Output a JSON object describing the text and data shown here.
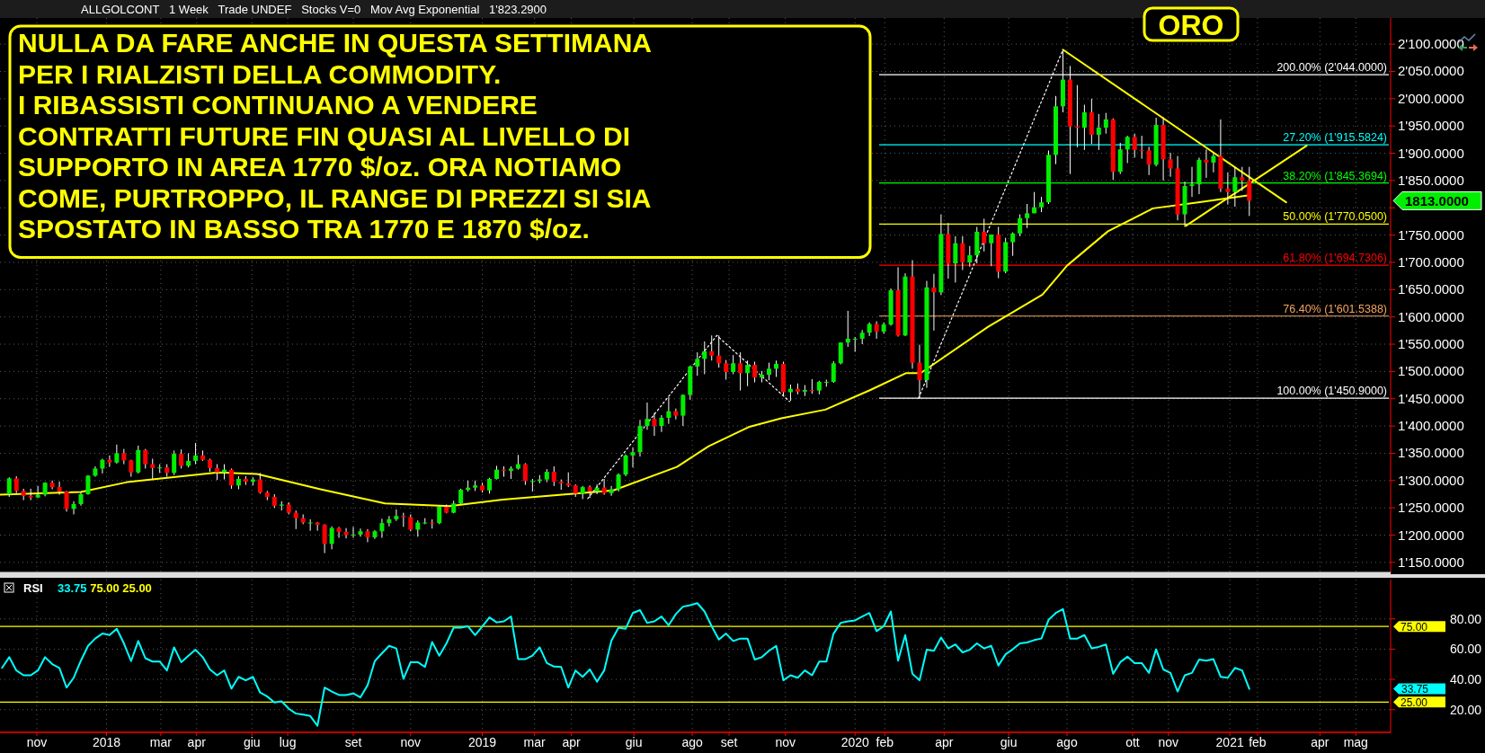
{
  "chart_data": [
    {
      "type": "candlestick",
      "title": "ORO",
      "subtitle": "ALLGOLCONT   1 Week   Trade UNDEF   Stocks V=0   Mov Avg Exponential   1'823.2900",
      "annotations": [
        "NULLA DA FARE ANCHE IN QUESTA SETTIMANA\nPER I RIALZISTI DELLA COMMODITY.\nI RIBASSISTI CONTINUANO A VENDERE\nCONTRATTI FUTURE FIN QUASI AL LIVELLO DI\nSUPPORTO IN AREA 1770 $/oz. ORA NOTIAMO\nCOME, PURTROPPO, IL RANGE DI PREZZI SI SIA\nSPOSTATO IN BASSO TRA 1770 E 1870 $/oz.",
        "1813.0000"
      ],
      "x": [
        "2017-10-13",
        "2017-10-20",
        "2017-10-27",
        "2017-11-03",
        "2017-11-10",
        "2017-11-17",
        "2017-11-24",
        "2017-12-01",
        "2017-12-08",
        "2017-12-15",
        "2017-12-22",
        "2017-12-29",
        "2018-01-05",
        "2018-01-12",
        "2018-01-19",
        "2018-01-26",
        "2018-02-02",
        "2018-02-09",
        "2018-02-16",
        "2018-02-23",
        "2018-03-02",
        "2018-03-09",
        "2018-03-16",
        "2018-03-23",
        "2018-03-30",
        "2018-04-06",
        "2018-04-13",
        "2018-04-20",
        "2018-04-27",
        "2018-05-04",
        "2018-05-11",
        "2018-05-18",
        "2018-05-25",
        "2018-06-01",
        "2018-06-08",
        "2018-06-15",
        "2018-06-22",
        "2018-06-29",
        "2018-07-06",
        "2018-07-13",
        "2018-07-20",
        "2018-07-27",
        "2018-08-03",
        "2018-08-10",
        "2018-08-17",
        "2018-08-24",
        "2018-08-31",
        "2018-09-07",
        "2018-09-14",
        "2018-09-21",
        "2018-09-28",
        "2018-10-05",
        "2018-10-12",
        "2018-10-19",
        "2018-10-26",
        "2018-11-02",
        "2018-11-09",
        "2018-11-16",
        "2018-11-23",
        "2018-11-30",
        "2018-12-07",
        "2018-12-14",
        "2018-12-21",
        "2018-12-28",
        "2019-01-04",
        "2019-01-11",
        "2019-01-18",
        "2019-01-25",
        "2019-02-01",
        "2019-02-08",
        "2019-02-15",
        "2019-02-22",
        "2019-03-01",
        "2019-03-08",
        "2019-03-15",
        "2019-03-22",
        "2019-03-29",
        "2019-04-05",
        "2019-04-12",
        "2019-04-19",
        "2019-04-26",
        "2019-05-03",
        "2019-05-10",
        "2019-05-17",
        "2019-05-24",
        "2019-05-31",
        "2019-06-07",
        "2019-06-14",
        "2019-06-21",
        "2019-06-28",
        "2019-07-05",
        "2019-07-12",
        "2019-07-19",
        "2019-07-26",
        "2019-08-02",
        "2019-08-09",
        "2019-08-16",
        "2019-08-23",
        "2019-08-30",
        "2019-09-06",
        "2019-09-13",
        "2019-09-20",
        "2019-09-27",
        "2019-10-04",
        "2019-10-11",
        "2019-10-18",
        "2019-10-25",
        "2019-11-01",
        "2019-11-08",
        "2019-11-15",
        "2019-11-22",
        "2019-11-29",
        "2019-12-06",
        "2019-12-13",
        "2019-12-20",
        "2019-12-27",
        "2020-01-03",
        "2020-01-10",
        "2020-01-17",
        "2020-01-24",
        "2020-01-31",
        "2020-02-07",
        "2020-02-14",
        "2020-02-21",
        "2020-02-28",
        "2020-03-06",
        "2020-03-13",
        "2020-03-20",
        "2020-03-27",
        "2020-04-03",
        "2020-04-10",
        "2020-04-17",
        "2020-04-24",
        "2020-05-01",
        "2020-05-08",
        "2020-05-15",
        "2020-05-22",
        "2020-05-29",
        "2020-06-05",
        "2020-06-12",
        "2020-06-19",
        "2020-06-26",
        "2020-07-03",
        "2020-07-10",
        "2020-07-17",
        "2020-07-24",
        "2020-07-31",
        "2020-08-07",
        "2020-08-14",
        "2020-08-21",
        "2020-08-28",
        "2020-09-04",
        "2020-09-11",
        "2020-09-18",
        "2020-09-25",
        "2020-10-02",
        "2020-10-09",
        "2020-10-16",
        "2020-10-23",
        "2020-10-30",
        "2020-11-06",
        "2020-11-13",
        "2020-11-20",
        "2020-11-27",
        "2020-12-04",
        "2020-12-11",
        "2020-12-18",
        "2020-12-25",
        "2021-01-01",
        "2021-01-08",
        "2021-01-15",
        "2021-01-22",
        "2021-01-29",
        "2021-02-05"
      ],
      "ohlc": [
        [
          1275,
          1306,
          1270,
          1304
        ],
        [
          1304,
          1308,
          1277,
          1281
        ],
        [
          1281,
          1285,
          1264,
          1272
        ],
        [
          1272,
          1285,
          1264,
          1269
        ],
        [
          1269,
          1290,
          1268,
          1274
        ],
        [
          1274,
          1297,
          1271,
          1296
        ],
        [
          1296,
          1300,
          1284,
          1288
        ],
        [
          1288,
          1298,
          1274,
          1280
        ],
        [
          1280,
          1281,
          1243,
          1248
        ],
        [
          1248,
          1262,
          1238,
          1257
        ],
        [
          1257,
          1278,
          1254,
          1275
        ],
        [
          1275,
          1310,
          1274,
          1309
        ],
        [
          1309,
          1326,
          1307,
          1322
        ],
        [
          1322,
          1340,
          1313,
          1338
        ],
        [
          1338,
          1346,
          1325,
          1333
        ],
        [
          1333,
          1366,
          1331,
          1350
        ],
        [
          1350,
          1358,
          1330,
          1337
        ],
        [
          1337,
          1338,
          1307,
          1315
        ],
        [
          1315,
          1364,
          1313,
          1356
        ],
        [
          1356,
          1358,
          1322,
          1330
        ],
        [
          1330,
          1340,
          1303,
          1323
        ],
        [
          1323,
          1330,
          1314,
          1324
        ],
        [
          1324,
          1330,
          1307,
          1314
        ],
        [
          1314,
          1355,
          1310,
          1349
        ],
        [
          1349,
          1357,
          1322,
          1327
        ],
        [
          1327,
          1350,
          1324,
          1336
        ],
        [
          1336,
          1369,
          1330,
          1346
        ],
        [
          1346,
          1355,
          1336,
          1338
        ],
        [
          1338,
          1340,
          1316,
          1323
        ],
        [
          1323,
          1330,
          1301,
          1315
        ],
        [
          1315,
          1330,
          1302,
          1320
        ],
        [
          1320,
          1322,
          1285,
          1291
        ],
        [
          1291,
          1308,
          1284,
          1303
        ],
        [
          1303,
          1308,
          1292,
          1298
        ],
        [
          1298,
          1306,
          1291,
          1302
        ],
        [
          1302,
          1314,
          1276,
          1278
        ],
        [
          1278,
          1281,
          1264,
          1270
        ],
        [
          1270,
          1275,
          1250,
          1254
        ],
        [
          1254,
          1262,
          1245,
          1256
        ],
        [
          1256,
          1260,
          1238,
          1241
        ],
        [
          1241,
          1245,
          1211,
          1231
        ],
        [
          1231,
          1238,
          1220,
          1223
        ],
        [
          1223,
          1229,
          1208,
          1223
        ],
        [
          1223,
          1224,
          1208,
          1219
        ],
        [
          1219,
          1220,
          1167,
          1184
        ],
        [
          1184,
          1216,
          1174,
          1213
        ],
        [
          1213,
          1215,
          1195,
          1206
        ],
        [
          1206,
          1213,
          1194,
          1200
        ],
        [
          1200,
          1215,
          1195,
          1201
        ],
        [
          1201,
          1212,
          1197,
          1207
        ],
        [
          1207,
          1211,
          1187,
          1196
        ],
        [
          1196,
          1209,
          1193,
          1207
        ],
        [
          1207,
          1230,
          1195,
          1222
        ],
        [
          1222,
          1235,
          1216,
          1229
        ],
        [
          1229,
          1247,
          1226,
          1235
        ],
        [
          1235,
          1241,
          1215,
          1233
        ],
        [
          1233,
          1238,
          1207,
          1210
        ],
        [
          1210,
          1227,
          1197,
          1223
        ],
        [
          1223,
          1231,
          1220,
          1223
        ],
        [
          1223,
          1229,
          1212,
          1222
        ],
        [
          1222,
          1253,
          1220,
          1252
        ],
        [
          1252,
          1256,
          1240,
          1241
        ],
        [
          1241,
          1263,
          1240,
          1258
        ],
        [
          1258,
          1285,
          1257,
          1283
        ],
        [
          1283,
          1300,
          1280,
          1287
        ],
        [
          1287,
          1300,
          1281,
          1291
        ],
        [
          1291,
          1296,
          1278,
          1282
        ],
        [
          1282,
          1305,
          1276,
          1303
        ],
        [
          1303,
          1327,
          1302,
          1320
        ],
        [
          1320,
          1326,
          1307,
          1318
        ],
        [
          1318,
          1326,
          1303,
          1322
        ],
        [
          1322,
          1347,
          1320,
          1330
        ],
        [
          1330,
          1332,
          1292,
          1299
        ],
        [
          1299,
          1303,
          1280,
          1299
        ],
        [
          1299,
          1310,
          1295,
          1302
        ],
        [
          1302,
          1321,
          1297,
          1316
        ],
        [
          1316,
          1326,
          1290,
          1298
        ],
        [
          1298,
          1302,
          1283,
          1295
        ],
        [
          1295,
          1315,
          1288,
          1291
        ],
        [
          1291,
          1293,
          1270,
          1276
        ],
        [
          1276,
          1290,
          1266,
          1288
        ],
        [
          1288,
          1291,
          1268,
          1280
        ],
        [
          1280,
          1293,
          1275,
          1287
        ],
        [
          1287,
          1303,
          1274,
          1277
        ],
        [
          1277,
          1290,
          1272,
          1284
        ],
        [
          1284,
          1313,
          1280,
          1311
        ],
        [
          1311,
          1348,
          1308,
          1346
        ],
        [
          1346,
          1361,
          1324,
          1352
        ],
        [
          1352,
          1411,
          1344,
          1400
        ],
        [
          1400,
          1443,
          1393,
          1413
        ],
        [
          1413,
          1424,
          1382,
          1400
        ],
        [
          1400,
          1420,
          1389,
          1415
        ],
        [
          1415,
          1453,
          1404,
          1427
        ],
        [
          1427,
          1432,
          1412,
          1419
        ],
        [
          1419,
          1458,
          1400,
          1457
        ],
        [
          1457,
          1511,
          1448,
          1509
        ],
        [
          1509,
          1535,
          1492,
          1523
        ],
        [
          1523,
          1555,
          1495,
          1537
        ],
        [
          1537,
          1566,
          1520,
          1529
        ],
        [
          1529,
          1566,
          1507,
          1515
        ],
        [
          1515,
          1521,
          1485,
          1499
        ],
        [
          1499,
          1530,
          1495,
          1515
        ],
        [
          1515,
          1535,
          1465,
          1497
        ],
        [
          1497,
          1520,
          1473,
          1512
        ],
        [
          1512,
          1518,
          1480,
          1489
        ],
        [
          1489,
          1501,
          1480,
          1494
        ],
        [
          1494,
          1516,
          1484,
          1505
        ],
        [
          1505,
          1520,
          1490,
          1514
        ],
        [
          1514,
          1518,
          1456,
          1462
        ],
        [
          1462,
          1476,
          1446,
          1468
        ],
        [
          1468,
          1478,
          1458,
          1463
        ],
        [
          1463,
          1475,
          1455,
          1466
        ],
        [
          1466,
          1486,
          1459,
          1465
        ],
        [
          1465,
          1483,
          1458,
          1481
        ],
        [
          1481,
          1485,
          1472,
          1481
        ],
        [
          1481,
          1519,
          1479,
          1515
        ],
        [
          1515,
          1553,
          1513,
          1553
        ],
        [
          1553,
          1611,
          1545,
          1560
        ],
        [
          1560,
          1563,
          1536,
          1560
        ],
        [
          1560,
          1576,
          1550,
          1571
        ],
        [
          1571,
          1590,
          1565,
          1587
        ],
        [
          1587,
          1592,
          1560,
          1573
        ],
        [
          1573,
          1590,
          1569,
          1586
        ],
        [
          1586,
          1652,
          1584,
          1649
        ],
        [
          1649,
          1691,
          1564,
          1566
        ],
        [
          1566,
          1680,
          1565,
          1674
        ],
        [
          1674,
          1704,
          1505,
          1516
        ],
        [
          1516,
          1549,
          1451,
          1484
        ],
        [
          1484,
          1666,
          1470,
          1654
        ],
        [
          1654,
          1679,
          1575,
          1645
        ],
        [
          1645,
          1788,
          1640,
          1752
        ],
        [
          1752,
          1772,
          1670,
          1698
        ],
        [
          1698,
          1748,
          1663,
          1735
        ],
        [
          1735,
          1748,
          1686,
          1700
        ],
        [
          1700,
          1730,
          1692,
          1713
        ],
        [
          1713,
          1765,
          1698,
          1756
        ],
        [
          1756,
          1780,
          1720,
          1735
        ],
        [
          1735,
          1751,
          1693,
          1751
        ],
        [
          1751,
          1765,
          1671,
          1683
        ],
        [
          1683,
          1745,
          1680,
          1737
        ],
        [
          1737,
          1755,
          1712,
          1753
        ],
        [
          1753,
          1788,
          1748,
          1781
        ],
        [
          1781,
          1807,
          1763,
          1790
        ],
        [
          1790,
          1829,
          1790,
          1801
        ],
        [
          1801,
          1820,
          1792,
          1810
        ],
        [
          1810,
          1905,
          1807,
          1897
        ],
        [
          1897,
          2005,
          1880,
          1986
        ],
        [
          1986,
          2089,
          1975,
          2035
        ],
        [
          2035,
          2060,
          1862,
          1949
        ],
        [
          1949,
          2025,
          1911,
          1947
        ],
        [
          1947,
          1989,
          1906,
          1975
        ],
        [
          1975,
          2000,
          1917,
          1934
        ],
        [
          1934,
          1972,
          1906,
          1947
        ],
        [
          1947,
          1974,
          1936,
          1962
        ],
        [
          1962,
          1964,
          1851,
          1866
        ],
        [
          1866,
          1919,
          1862,
          1907
        ],
        [
          1907,
          1932,
          1882,
          1930
        ],
        [
          1930,
          1936,
          1892,
          1906
        ],
        [
          1906,
          1932,
          1890,
          1905
        ],
        [
          1905,
          1912,
          1860,
          1879
        ],
        [
          1879,
          1965,
          1876,
          1952
        ],
        [
          1952,
          1966,
          1850,
          1889
        ],
        [
          1889,
          1901,
          1857,
          1872
        ],
        [
          1872,
          1895,
          1777,
          1788
        ],
        [
          1788,
          1848,
          1765,
          1840
        ],
        [
          1840,
          1875,
          1820,
          1843
        ],
        [
          1843,
          1892,
          1825,
          1888
        ],
        [
          1888,
          1907,
          1855,
          1883
        ],
        [
          1883,
          1900,
          1865,
          1895
        ],
        [
          1895,
          1962,
          1829,
          1835
        ],
        [
          1835,
          1865,
          1806,
          1829
        ],
        [
          1829,
          1875,
          1802,
          1856
        ],
        [
          1856,
          1875,
          1831,
          1850
        ],
        [
          1850,
          1875,
          1785,
          1813
        ]
      ],
      "series": [
        {
          "type": "line",
          "color": "#ffff00",
          "x": [
            "2017-10-04",
            "2017-12-22",
            "2018-02-05",
            "2018-05-05",
            "2018-06-12",
            "2018-08-13",
            "2018-10-15",
            "2018-12-17",
            "2019-02-07",
            "2019-05-26",
            "2019-07-27",
            "2019-08-27",
            "2019-10-05",
            "2019-11-06",
            "2019-12-19",
            "2020-02-01",
            "2020-03-07",
            "2020-03-21",
            "2020-05-26",
            "2020-07-18",
            "2020-08-11",
            "2020-09-20",
            "2020-11-03",
            "2020-12-17",
            "2021-02-05"
          ],
          "values": [
            1274,
            1279,
            1297,
            1315,
            1312,
            1284,
            1258,
            1253,
            1265,
            1282,
            1325,
            1363,
            1398,
            1414,
            1430,
            1466,
            1497,
            1497,
            1582,
            1641,
            1694,
            1757,
            1799,
            1810,
            1823
          ]
        },
        {
          "type": "line",
          "color": "#ffff00",
          "x": [
            "2020-08-07",
            "2021-03-13"
          ],
          "values": [
            2090,
            1810
          ]
        },
        {
          "type": "line",
          "color": "#ffff00",
          "x": [
            "2020-12-05",
            "2021-04-02"
          ],
          "values": [
            1767,
            1914
          ]
        },
        {
          "type": "line",
          "color": "#ffffff",
          "line_style": "dotted",
          "x": [
            "2019-05-01",
            "2019-09-04",
            "2019-11-14"
          ],
          "values": [
            1267,
            1566,
            1445
          ]
        },
        {
          "type": "line",
          "color": "#ffffff",
          "line_style": "dotted",
          "x": [
            "2020-03-19",
            "2020-08-07"
          ],
          "values": [
            1451,
            2090
          ]
        }
      ],
      "ref_lines": [
        {
          "axis": "y",
          "value": 2044,
          "label": "200.00% (2'044.0000)",
          "color": "#ffffff"
        },
        {
          "axis": "y",
          "value": 1915.5824,
          "label": "27.20% (1'915.5824)",
          "color": "#00ffff"
        },
        {
          "axis": "y",
          "value": 1845.3694,
          "label": "38.20% (1'845.3694)",
          "color": "#00ff00"
        },
        {
          "axis": "y",
          "value": 1770.05,
          "label": "50.00% (1'770.0500)",
          "color": "#ffff00"
        },
        {
          "axis": "y",
          "value": 1694.7306,
          "label": "61.80% (1'694.7306)",
          "color": "#ff0000"
        },
        {
          "axis": "y",
          "value": 1601.5388,
          "label": "76.40% (1'601.5388)",
          "color": "#f4a460"
        },
        {
          "axis": "y",
          "value": 1450.9,
          "label": "100.00% (1'450.9000)",
          "color": "#ffffff"
        }
      ],
      "xlim": [
        "2017-10-04",
        "2021-06-23"
      ],
      "ylim": [
        1130,
        2148
      ],
      "yticks": [
        {
          "value": 1150,
          "label": "1'150.0000"
        },
        {
          "value": 1200,
          "label": "1'200.0000"
        },
        {
          "value": 1250,
          "label": "1'250.0000"
        },
        {
          "value": 1300,
          "label": "1'300.0000"
        },
        {
          "value": 1350,
          "label": "1'350.0000"
        },
        {
          "value": 1400,
          "label": "1'400.0000"
        },
        {
          "value": 1450,
          "label": "1'450.0000"
        },
        {
          "value": 1500,
          "label": "1'500.0000"
        },
        {
          "value": 1550,
          "label": "1'550.0000"
        },
        {
          "value": 1600,
          "label": "1'600.0000"
        },
        {
          "value": 1650,
          "label": "1'650.0000"
        },
        {
          "value": 1700,
          "label": "1'700.0000"
        },
        {
          "value": 1750,
          "label": "1'750.0000"
        },
        {
          "value": 1800,
          "label": null
        },
        {
          "value": 1850,
          "label": "1'850.0000"
        },
        {
          "value": 1900,
          "label": "1'900.0000"
        },
        {
          "value": 1950,
          "label": "1'950.0000"
        },
        {
          "value": 2000,
          "label": "2'000.0000"
        },
        {
          "value": 2050,
          "label": "2'050.0000"
        },
        {
          "value": 2100,
          "label": "2'100.0000"
        }
      ],
      "xticks": [
        {
          "value": "2017-11-09",
          "label": null
        },
        {
          "value": "2018-01-16",
          "label": null
        },
        {
          "value": "2018-03-10",
          "label": null
        },
        {
          "value": "2018-04-14",
          "label": null
        },
        {
          "value": "2018-06-07",
          "label": null
        },
        {
          "value": "2018-07-12",
          "label": null
        },
        {
          "value": "2018-09-14",
          "label": null
        },
        {
          "value": "2018-11-09",
          "label": null
        },
        {
          "value": "2019-01-18",
          "label": null
        },
        {
          "value": "2019-03-10",
          "label": null
        },
        {
          "value": "2019-04-15",
          "label": null
        },
        {
          "value": "2019-06-15",
          "label": null
        },
        {
          "value": "2019-08-11",
          "label": null
        },
        {
          "value": "2019-09-16",
          "label": null
        },
        {
          "value": "2019-11-10",
          "label": null
        },
        {
          "value": "2020-01-17",
          "label": null
        },
        {
          "value": "2020-02-15",
          "label": null
        },
        {
          "value": "2020-04-13",
          "label": null
        },
        {
          "value": "2020-06-15",
          "label": null
        },
        {
          "value": "2020-08-11",
          "label": null
        },
        {
          "value": "2020-10-14",
          "label": null
        },
        {
          "value": "2020-11-18",
          "label": null
        },
        {
          "value": "2021-01-17",
          "label": null
        },
        {
          "value": "2021-02-13",
          "label": null
        },
        {
          "value": "2021-04-15",
          "label": null
        },
        {
          "value": "2021-05-20",
          "label": null
        }
      ],
      "grid": true,
      "tick_labels": "y"
    },
    {
      "type": "line",
      "title": "RSI",
      "subtitle": "33.75 75.00 25.00",
      "x": [
        "2017-10-06",
        "2017-10-13",
        "2017-10-20",
        "2017-10-27",
        "2017-11-03",
        "2017-11-10",
        "2017-11-17",
        "2017-11-24",
        "2017-12-01",
        "2017-12-08",
        "2017-12-15",
        "2017-12-22",
        "2017-12-29",
        "2018-01-05",
        "2018-01-12",
        "2018-01-19",
        "2018-01-26",
        "2018-02-02",
        "2018-02-09",
        "2018-02-16",
        "2018-02-23",
        "2018-03-02",
        "2018-03-09",
        "2018-03-16",
        "2018-03-23",
        "2018-03-30",
        "2018-04-06",
        "2018-04-13",
        "2018-04-20",
        "2018-04-27",
        "2018-05-04",
        "2018-05-11",
        "2018-05-18",
        "2018-05-25",
        "2018-06-01",
        "2018-06-08",
        "2018-06-15",
        "2018-06-22",
        "2018-06-29",
        "2018-07-06",
        "2018-07-13",
        "2018-07-20",
        "2018-07-27",
        "2018-08-03",
        "2018-08-10",
        "2018-08-17",
        "2018-08-24",
        "2018-08-31",
        "2018-09-07",
        "2018-09-14",
        "2018-09-21",
        "2018-09-28",
        "2018-10-05",
        "2018-10-12",
        "2018-10-19",
        "2018-10-26",
        "2018-11-02",
        "2018-11-09",
        "2018-11-16",
        "2018-11-23",
        "2018-11-30",
        "2018-12-07",
        "2018-12-14",
        "2018-12-21",
        "2018-12-28",
        "2019-01-04",
        "2019-01-11",
        "2019-01-18",
        "2019-01-25",
        "2019-02-01",
        "2019-02-08",
        "2019-02-15",
        "2019-02-22",
        "2019-03-01",
        "2019-03-08",
        "2019-03-15",
        "2019-03-22",
        "2019-03-29",
        "2019-04-05",
        "2019-04-12",
        "2019-04-19",
        "2019-04-26",
        "2019-05-03",
        "2019-05-10",
        "2019-05-17",
        "2019-05-24",
        "2019-05-31",
        "2019-06-07",
        "2019-06-14",
        "2019-06-21",
        "2019-06-28",
        "2019-07-05",
        "2019-07-12",
        "2019-07-19",
        "2019-07-26",
        "2019-08-02",
        "2019-08-09",
        "2019-08-16",
        "2019-08-23",
        "2019-08-30",
        "2019-09-06",
        "2019-09-13",
        "2019-09-20",
        "2019-09-27",
        "2019-10-04",
        "2019-10-11",
        "2019-10-18",
        "2019-10-25",
        "2019-11-01",
        "2019-11-08",
        "2019-11-15",
        "2019-11-22",
        "2019-11-29",
        "2019-12-06",
        "2019-12-13",
        "2019-12-20",
        "2019-12-27",
        "2020-01-03",
        "2020-01-10",
        "2020-01-17",
        "2020-01-24",
        "2020-01-31",
        "2020-02-07",
        "2020-02-14",
        "2020-02-21",
        "2020-02-28",
        "2020-03-06",
        "2020-03-13",
        "2020-03-20",
        "2020-03-27",
        "2020-04-03",
        "2020-04-10",
        "2020-04-17",
        "2020-04-24",
        "2020-05-01",
        "2020-05-08",
        "2020-05-15",
        "2020-05-22",
        "2020-05-29",
        "2020-06-05",
        "2020-06-12",
        "2020-06-19",
        "2020-06-26",
        "2020-07-03",
        "2020-07-10",
        "2020-07-17",
        "2020-07-24",
        "2020-07-31",
        "2020-08-07",
        "2020-08-14",
        "2020-08-21",
        "2020-08-28",
        "2020-09-04",
        "2020-09-11",
        "2020-09-18",
        "2020-09-25",
        "2020-10-02",
        "2020-10-09",
        "2020-10-16",
        "2020-10-23",
        "2020-10-30",
        "2020-11-06",
        "2020-11-13",
        "2020-11-20",
        "2020-11-27",
        "2020-12-04",
        "2020-12-11",
        "2020-12-18",
        "2020-12-25",
        "2021-01-01",
        "2021-01-08",
        "2021-01-15",
        "2021-01-22",
        "2021-01-29",
        "2021-02-05"
      ],
      "series": [
        {
          "color": "#00ffff",
          "values": [
            47.6,
            54.7,
            45.9,
            42.7,
            42.7,
            45.9,
            54.7,
            50.1,
            47.6,
            34.6,
            41.1,
            52.4,
            62.2,
            67.0,
            70.3,
            69.3,
            73.5,
            63.8,
            52.1,
            65.4,
            54.0,
            51.8,
            51.8,
            45.9,
            61.2,
            51.4,
            55.7,
            59.6,
            54.7,
            46.6,
            42.7,
            45.9,
            33.9,
            41.7,
            39.4,
            41.7,
            31.3,
            28.7,
            24.8,
            25.5,
            20.6,
            17.4,
            16.7,
            15.8,
            9.3,
            34.6,
            32.0,
            29.7,
            29.7,
            30.7,
            28.1,
            36.2,
            52.1,
            57.3,
            62.2,
            60.5,
            40.4,
            51.4,
            51.4,
            48.2,
            64.7,
            55.7,
            63.8,
            74.2,
            74.2,
            75.1,
            69.3,
            75.1,
            81.0,
            77.7,
            78.4,
            81.6,
            53.4,
            53.4,
            55.7,
            61.2,
            50.8,
            48.5,
            48.2,
            34.6,
            45.9,
            41.7,
            46.6,
            38.5,
            45.9,
            65.4,
            74.2,
            73.5,
            83.9,
            85.8,
            77.4,
            78.4,
            81.6,
            75.8,
            83.2,
            88.1,
            89.1,
            90.4,
            84.9,
            75.1,
            66.4,
            70.3,
            65.4,
            67.0,
            67.0,
            53.1,
            54.7,
            58.9,
            62.2,
            39.4,
            42.7,
            41.1,
            45.9,
            42.7,
            51.8,
            51.8,
            70.3,
            77.4,
            78.4,
            79.0,
            81.6,
            83.9,
            71.9,
            75.1,
            84.9,
            52.4,
            69.3,
            43.7,
            39.4,
            59.6,
            58.9,
            67.7,
            60.5,
            63.1,
            57.9,
            59.6,
            63.8,
            60.5,
            62.2,
            49.2,
            56.6,
            59.9,
            63.8,
            64.4,
            66.0,
            67.0,
            79.4,
            83.9,
            86.5,
            67.0,
            67.0,
            69.3,
            60.5,
            61.5,
            63.1,
            43.7,
            51.4,
            55.0,
            50.8,
            50.8,
            44.3,
            59.9,
            46.6,
            44.3,
            32.0,
            42.7,
            44.3,
            53.1,
            52.4,
            53.4,
            41.7,
            41.1,
            47.6,
            45.9,
            33.75
          ]
        }
      ],
      "annotations": [
        "33.75"
      ],
      "ref_lines": [
        {
          "axis": "y",
          "value": 75,
          "label": "75.00",
          "color": "#ffff00"
        },
        {
          "axis": "y",
          "value": 25,
          "label": "25.00",
          "color": "#ffff00"
        }
      ],
      "xlim": [
        "2017-10-04",
        "2021-06-23"
      ],
      "ylim": [
        5,
        106
      ],
      "yticks": [
        {
          "value": 20,
          "label": "20.00"
        },
        {
          "value": 40,
          "label": "40.00"
        },
        {
          "value": 60,
          "label": "60.00"
        },
        {
          "value": 80,
          "label": "80.00"
        }
      ],
      "xticks": [
        {
          "value": "2017-11-09",
          "label": "nov"
        },
        {
          "value": "2018-01-16",
          "label": "2018"
        },
        {
          "value": "2018-03-10",
          "label": "mar"
        },
        {
          "value": "2018-04-14",
          "label": "apr"
        },
        {
          "value": "2018-06-07",
          "label": "giu"
        },
        {
          "value": "2018-07-12",
          "label": "lug"
        },
        {
          "value": "2018-09-14",
          "label": "set"
        },
        {
          "value": "2018-11-09",
          "label": "nov"
        },
        {
          "value": "2019-01-18",
          "label": "2019"
        },
        {
          "value": "2019-03-10",
          "label": "mar"
        },
        {
          "value": "2019-04-15",
          "label": "apr"
        },
        {
          "value": "2019-06-15",
          "label": "giu"
        },
        {
          "value": "2019-08-11",
          "label": "ago"
        },
        {
          "value": "2019-09-16",
          "label": "set"
        },
        {
          "value": "2019-11-10",
          "label": "nov"
        },
        {
          "value": "2020-01-17",
          "label": "2020"
        },
        {
          "value": "2020-02-15",
          "label": "feb"
        },
        {
          "value": "2020-04-13",
          "label": "apr"
        },
        {
          "value": "2020-06-15",
          "label": "giu"
        },
        {
          "value": "2020-08-11",
          "label": "ago"
        },
        {
          "value": "2020-10-14",
          "label": "ott"
        },
        {
          "value": "2020-11-18",
          "label": "nov"
        },
        {
          "value": "2021-01-17",
          "label": "2021"
        },
        {
          "value": "2021-02-13",
          "label": "feb"
        },
        {
          "value": "2021-04-15",
          "label": "apr"
        },
        {
          "value": "2021-05-20",
          "label": "mag"
        }
      ],
      "grid": true
    }
  ]
}
